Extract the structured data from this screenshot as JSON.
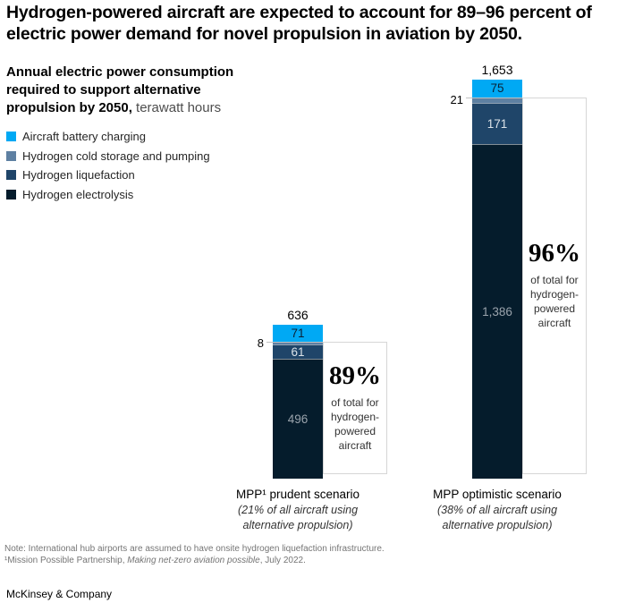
{
  "header": {
    "lines": [
      "Hydrogen-powered aircraft are expected to account for 89–96 percent of",
      "electric power demand for novel propulsion in aviation by 2050."
    ]
  },
  "subtitle": {
    "bold_lines": [
      "Annual electric power consumption",
      "required to support alternative"
    ],
    "bold_tail": "propulsion by 2050,",
    "unit": " terawatt hours"
  },
  "chart_data": {
    "type": "bar",
    "stacked": true,
    "title": "Annual electric power consumption required to support alternative propulsion by 2050",
    "unit": "terawatt hours",
    "legend_position": "top-left",
    "axes": "none",
    "series": [
      {
        "name": "Aircraft battery charging",
        "color": "#00a9f4",
        "values": [
          71,
          75
        ],
        "value_color": "#0b2236"
      },
      {
        "name": "Hydrogen cold storage and pumping",
        "color": "#5e80a2",
        "values": [
          8,
          21
        ],
        "label_outside": true
      },
      {
        "name": "Hydrogen liquefaction",
        "color": "#1f4569",
        "values": [
          61,
          171
        ],
        "value_color": "#dbe2e8"
      },
      {
        "name": "Hydrogen electrolysis",
        "color": "#051c2c",
        "values": [
          496,
          1386
        ],
        "value_color": "#9aa3ac"
      }
    ],
    "totals": [
      636,
      1653
    ],
    "categories": [
      {
        "label": "MPP¹ prudent scenario",
        "sub_lines": [
          "(21% of all aircraft using",
          "alternative propulsion)"
        ]
      },
      {
        "label": "MPP optimistic scenario",
        "sub_lines": [
          "(38% of all aircraft using",
          "alternative propulsion)"
        ]
      }
    ],
    "callouts": [
      {
        "percent": "89%",
        "caption_lines": [
          "of total for",
          "hydrogen-",
          "powered",
          "aircraft"
        ]
      },
      {
        "percent": "96%",
        "caption_lines": [
          "of total for",
          "hydrogen-",
          "powered",
          "aircraft"
        ]
      }
    ]
  },
  "footnote": {
    "note": "Note: International hub airports are assumed to have onsite hydrogen liquefaction infrastructure.",
    "source_prefix": "¹Mission Possible Partnership, ",
    "source_italic": "Making net-zero aviation possible",
    "source_suffix": ", July 2022."
  },
  "brand": "McKinsey & Company"
}
